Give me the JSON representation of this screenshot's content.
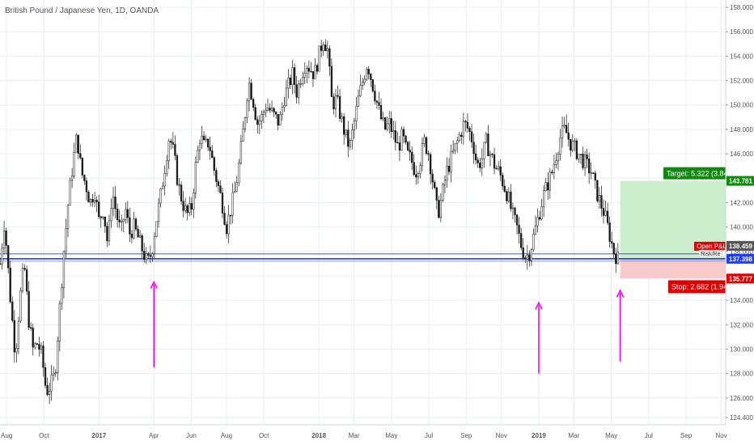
{
  "header": {
    "symbol": "British Pound / Japanese Yen, 1D, OANDA"
  },
  "chart_data": {
    "type": "candlestick",
    "y_ticks": [
      "124.400",
      "126.000",
      "128.000",
      "130.000",
      "132.000",
      "134.000",
      "136.000",
      "138.000",
      "140.000",
      "142.000",
      "144.000",
      "146.000",
      "148.000",
      "150.000",
      "152.000",
      "154.000",
      "156.000",
      "158.000"
    ],
    "ylim": [
      123.8,
      158.6
    ],
    "x_ticks": [
      {
        "label": "Aug",
        "x": 2016.58,
        "bold": false
      },
      {
        "label": "Oct",
        "x": 2016.75,
        "bold": false
      },
      {
        "label": "2017",
        "x": 2017.0,
        "bold": true
      },
      {
        "label": "Apr",
        "x": 2017.25,
        "bold": false
      },
      {
        "label": "Jun",
        "x": 2017.42,
        "bold": false
      },
      {
        "label": "Aug",
        "x": 2017.58,
        "bold": false
      },
      {
        "label": "Oct",
        "x": 2017.75,
        "bold": false
      },
      {
        "label": "2018",
        "x": 2018.0,
        "bold": true
      },
      {
        "label": "Mar",
        "x": 2018.16,
        "bold": false
      },
      {
        "label": "May",
        "x": 2018.33,
        "bold": false
      },
      {
        "label": "Jul",
        "x": 2018.5,
        "bold": false
      },
      {
        "label": "Sep",
        "x": 2018.67,
        "bold": false
      },
      {
        "label": "Nov",
        "x": 2018.83,
        "bold": false
      },
      {
        "label": "2019",
        "x": 2019.0,
        "bold": true
      },
      {
        "label": "Mar",
        "x": 2019.16,
        "bold": false
      },
      {
        "label": "May",
        "x": 2019.33,
        "bold": false
      },
      {
        "label": "Jul",
        "x": 2019.5,
        "bold": false
      },
      {
        "label": "Sep",
        "x": 2019.67,
        "bold": false
      },
      {
        "label": "Nov",
        "x": 2019.83,
        "bold": false
      }
    ],
    "xlim": [
      2016.55,
      2019.85
    ],
    "price_path": [
      [
        2016.55,
        137.0
      ],
      [
        2016.57,
        140.5
      ],
      [
        2016.6,
        133.5
      ],
      [
        2016.62,
        129.5
      ],
      [
        2016.64,
        134.0
      ],
      [
        2016.66,
        137.0
      ],
      [
        2016.68,
        132.5
      ],
      [
        2016.7,
        130.0
      ],
      [
        2016.72,
        130.5
      ],
      [
        2016.74,
        129.5
      ],
      [
        2016.76,
        126.5
      ],
      [
        2016.78,
        127.0
      ],
      [
        2016.8,
        128.0
      ],
      [
        2016.82,
        133.0
      ],
      [
        2016.84,
        138.0
      ],
      [
        2016.86,
        142.0
      ],
      [
        2016.88,
        145.0
      ],
      [
        2016.9,
        147.5
      ],
      [
        2016.92,
        144.5
      ],
      [
        2016.94,
        143.5
      ],
      [
        2016.96,
        142.0
      ],
      [
        2016.98,
        143.0
      ],
      [
        2017.0,
        140.5
      ],
      [
        2017.02,
        141.5
      ],
      [
        2017.04,
        138.5
      ],
      [
        2017.06,
        143.0
      ],
      [
        2017.08,
        141.0
      ],
      [
        2017.1,
        139.5
      ],
      [
        2017.12,
        141.5
      ],
      [
        2017.14,
        139.5
      ],
      [
        2017.16,
        140.0
      ],
      [
        2017.18,
        139.0
      ],
      [
        2017.2,
        138.0
      ],
      [
        2017.22,
        137.0
      ],
      [
        2017.24,
        138.0
      ],
      [
        2017.26,
        140.5
      ],
      [
        2017.28,
        142.5
      ],
      [
        2017.3,
        145.0
      ],
      [
        2017.32,
        147.5
      ],
      [
        2017.34,
        146.0
      ],
      [
        2017.36,
        143.5
      ],
      [
        2017.38,
        142.0
      ],
      [
        2017.4,
        141.0
      ],
      [
        2017.42,
        141.5
      ],
      [
        2017.44,
        145.0
      ],
      [
        2017.46,
        147.5
      ],
      [
        2017.48,
        146.5
      ],
      [
        2017.5,
        147.0
      ],
      [
        2017.52,
        145.0
      ],
      [
        2017.54,
        143.5
      ],
      [
        2017.56,
        142.0
      ],
      [
        2017.58,
        140.0
      ],
      [
        2017.6,
        141.5
      ],
      [
        2017.62,
        143.0
      ],
      [
        2017.64,
        145.5
      ],
      [
        2017.66,
        148.5
      ],
      [
        2017.68,
        152.0
      ],
      [
        2017.7,
        150.5
      ],
      [
        2017.72,
        148.5
      ],
      [
        2017.74,
        149.0
      ],
      [
        2017.76,
        150.0
      ],
      [
        2017.78,
        149.5
      ],
      [
        2017.8,
        149.0
      ],
      [
        2017.82,
        148.5
      ],
      [
        2017.84,
        150.5
      ],
      [
        2017.86,
        151.5
      ],
      [
        2017.88,
        152.5
      ],
      [
        2017.9,
        151.0
      ],
      [
        2017.92,
        152.5
      ],
      [
        2017.94,
        153.5
      ],
      [
        2017.96,
        153.0
      ],
      [
        2017.98,
        152.5
      ],
      [
        2018.0,
        154.0
      ],
      [
        2018.02,
        155.5
      ],
      [
        2018.04,
        154.5
      ],
      [
        2018.06,
        150.0
      ],
      [
        2018.08,
        150.5
      ],
      [
        2018.1,
        149.0
      ],
      [
        2018.12,
        147.5
      ],
      [
        2018.14,
        146.5
      ],
      [
        2018.16,
        148.5
      ],
      [
        2018.18,
        150.5
      ],
      [
        2018.2,
        152.0
      ],
      [
        2018.22,
        153.5
      ],
      [
        2018.24,
        152.0
      ],
      [
        2018.26,
        150.5
      ],
      [
        2018.28,
        149.0
      ],
      [
        2018.3,
        148.0
      ],
      [
        2018.32,
        148.5
      ],
      [
        2018.34,
        147.5
      ],
      [
        2018.36,
        146.5
      ],
      [
        2018.38,
        147.5
      ],
      [
        2018.4,
        146.0
      ],
      [
        2018.42,
        145.5
      ],
      [
        2018.44,
        144.5
      ],
      [
        2018.46,
        145.5
      ],
      [
        2018.48,
        147.0
      ],
      [
        2018.5,
        146.0
      ],
      [
        2018.52,
        143.5
      ],
      [
        2018.54,
        141.0
      ],
      [
        2018.56,
        142.5
      ],
      [
        2018.58,
        144.5
      ],
      [
        2018.6,
        145.5
      ],
      [
        2018.62,
        146.5
      ],
      [
        2018.64,
        147.5
      ],
      [
        2018.66,
        148.5
      ],
      [
        2018.68,
        148.0
      ],
      [
        2018.7,
        147.0
      ],
      [
        2018.72,
        145.0
      ],
      [
        2018.74,
        145.5
      ],
      [
        2018.76,
        147.0
      ],
      [
        2018.78,
        146.0
      ],
      [
        2018.8,
        145.0
      ],
      [
        2018.82,
        144.5
      ],
      [
        2018.84,
        143.5
      ],
      [
        2018.86,
        142.5
      ],
      [
        2018.88,
        141.0
      ],
      [
        2018.9,
        140.0
      ],
      [
        2018.92,
        138.5
      ],
      [
        2018.94,
        137.5
      ],
      [
        2018.96,
        138.0
      ],
      [
        2018.98,
        139.5
      ],
      [
        2019.0,
        141.0
      ],
      [
        2019.02,
        142.5
      ],
      [
        2019.04,
        143.5
      ],
      [
        2019.06,
        144.5
      ],
      [
        2019.08,
        146.0
      ],
      [
        2019.1,
        147.5
      ],
      [
        2019.12,
        148.0
      ],
      [
        2019.14,
        147.0
      ],
      [
        2019.16,
        146.5
      ],
      [
        2019.18,
        146.0
      ],
      [
        2019.2,
        145.5
      ],
      [
        2019.22,
        145.0
      ],
      [
        2019.24,
        144.5
      ],
      [
        2019.26,
        143.0
      ],
      [
        2019.28,
        142.0
      ],
      [
        2019.3,
        141.0
      ],
      [
        2019.32,
        139.5
      ],
      [
        2019.34,
        138.0
      ],
      [
        2019.36,
        137.398
      ]
    ],
    "horizontal_lines": [
      {
        "name": "entry",
        "value": 137.398,
        "color": "#1e3cff"
      },
      {
        "name": "level-upper",
        "value": 137.8,
        "color": "#1e3cff"
      },
      {
        "name": "level-lower",
        "value": 137.2,
        "color": "#7a7aa0"
      }
    ],
    "position": {
      "x_start": 2019.37,
      "x_end": 2019.85,
      "target_price": 143.781,
      "entry_price": 137.398,
      "stop_price": 135.777,
      "current_price": 138.459,
      "target_label": "Target: 5.322 (3.84%",
      "stop_label": "Stop: 2.682 (1.94%",
      "open_pl_label": "Open P&L:",
      "risk_label": "Risk/Re"
    },
    "price_badges": [
      {
        "text": "143.781",
        "value": 143.781,
        "bg": "#0f8a0f",
        "fg": "#ffffff"
      },
      {
        "text": "138.459",
        "value": 138.459,
        "bg": "#555555",
        "fg": "#ffffff"
      },
      {
        "text": "137.398",
        "value": 137.398,
        "bg": "#1e3cff",
        "fg": "#ffffff"
      },
      {
        "text": "135.777",
        "value": 135.777,
        "bg": "#e00000",
        "fg": "#ffffff"
      }
    ],
    "arrows": [
      {
        "x": 2017.25,
        "y_from": 128.5,
        "y_to": 135.5
      },
      {
        "x": 2019.0,
        "y_from": 128.0,
        "y_to": 133.8
      },
      {
        "x": 2019.37,
        "y_from": 129.0,
        "y_to": 134.8
      }
    ],
    "colors": {
      "candle": "#1a1a1a",
      "arrow": "#ff00ff",
      "target_zone": "#cdeecd",
      "stop_zone": "#f8cccc",
      "target_label_bg": "#0f8a0f",
      "stop_label_bg": "#e00000",
      "open_pl_bg": "#e00000",
      "grid": "#e9eef3",
      "axis_text": "#555555"
    }
  }
}
